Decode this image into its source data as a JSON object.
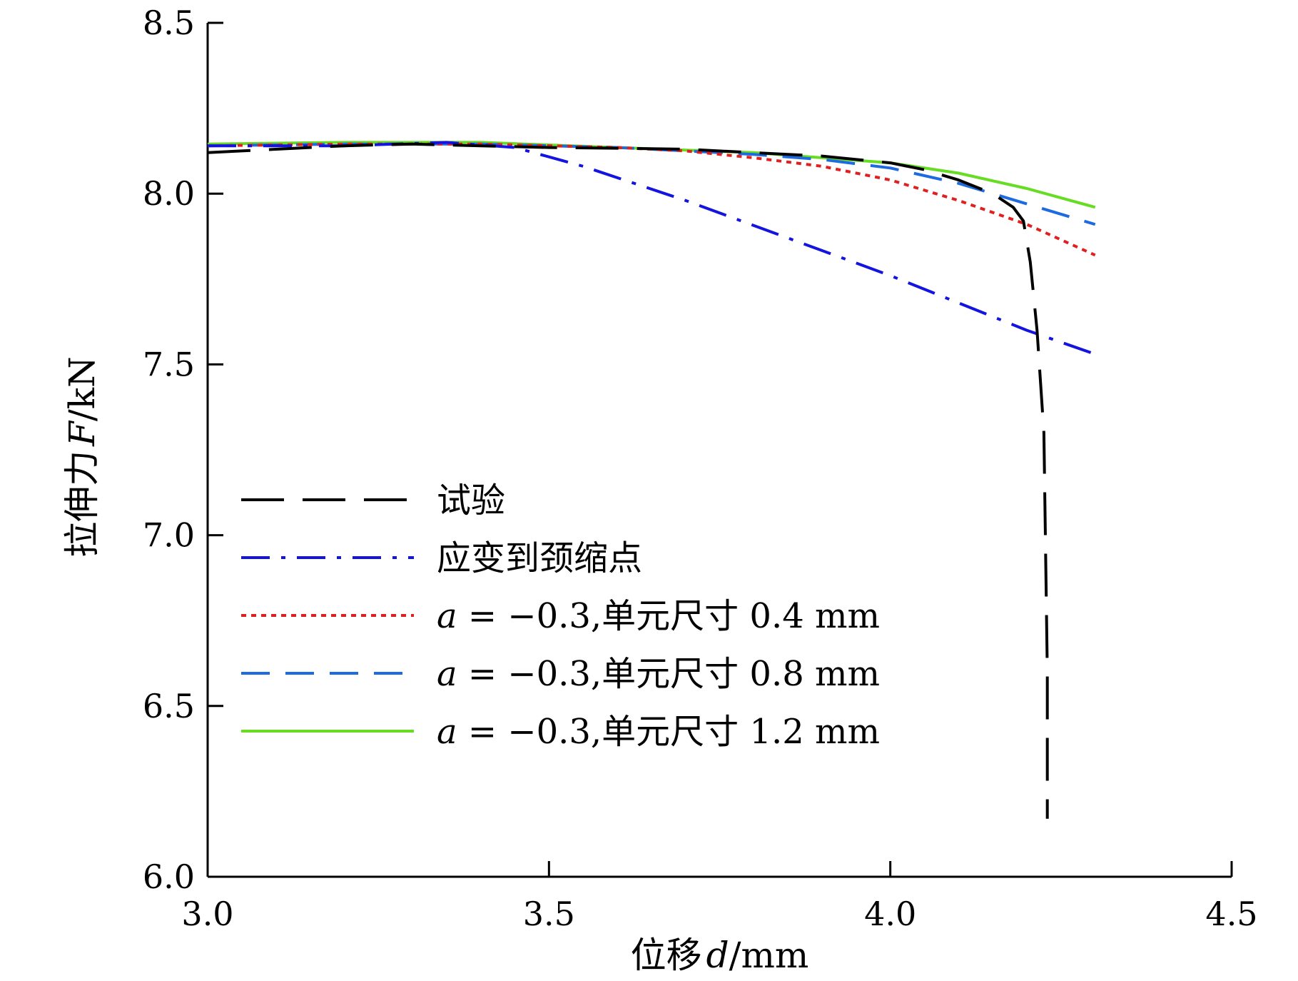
{
  "chart_data": {
    "type": "line",
    "title": "",
    "xlabel": {
      "prefix": "位移",
      "symbol": "d",
      "unit": "/mm"
    },
    "ylabel": {
      "prefix": "拉伸力",
      "symbol": "F",
      "unit": "/kN"
    },
    "xlim": [
      3.0,
      4.5
    ],
    "ylim": [
      6.0,
      8.5
    ],
    "xticks": [
      3.0,
      3.5,
      4.0,
      4.5
    ],
    "yticks": [
      6.0,
      6.5,
      7.0,
      7.5,
      8.0,
      8.5
    ],
    "xtick_labels": [
      "3.0",
      "3.5",
      "4.0",
      "4.5"
    ],
    "ytick_labels": [
      "6.0",
      "6.5",
      "7.0",
      "7.5",
      "8.0",
      "8.5"
    ],
    "grid": false,
    "legend_position": "center-left",
    "series": [
      {
        "name": "试验",
        "color": "#000000",
        "dash": "long-dash",
        "x": [
          3.0,
          3.1,
          3.2,
          3.3,
          3.4,
          3.5,
          3.6,
          3.7,
          3.8,
          3.9,
          4.0,
          4.05,
          4.1,
          4.15,
          4.18,
          4.195,
          4.205,
          4.215,
          4.225,
          4.23,
          4.23
        ],
        "y": [
          8.12,
          8.13,
          8.14,
          8.145,
          8.14,
          8.135,
          8.133,
          8.13,
          8.12,
          8.11,
          8.09,
          8.07,
          8.04,
          8.0,
          7.96,
          7.92,
          7.8,
          7.6,
          7.3,
          6.6,
          6.17
        ]
      },
      {
        "name": "应变到颈缩点",
        "color": "#1414e0",
        "dash": "dash-dot",
        "x": [
          3.0,
          3.2,
          3.35,
          3.45,
          3.55,
          3.7,
          3.85,
          4.0,
          4.1,
          4.2,
          4.3
        ],
        "y": [
          8.14,
          8.14,
          8.15,
          8.135,
          8.08,
          7.98,
          7.87,
          7.76,
          7.68,
          7.6,
          7.53
        ]
      },
      {
        "name": "a = −0.3,单元尺寸 0.4 mm",
        "color": "#e02020",
        "dash": "dotted",
        "x": [
          3.0,
          3.2,
          3.4,
          3.6,
          3.7,
          3.8,
          3.9,
          4.0,
          4.1,
          4.2,
          4.3
        ],
        "y": [
          8.14,
          8.145,
          8.145,
          8.135,
          8.125,
          8.105,
          8.08,
          8.04,
          7.98,
          7.91,
          7.82
        ]
      },
      {
        "name": "a = −0.3,单元尺寸 0.8 mm",
        "color": "#1e6ae0",
        "dash": "dash",
        "x": [
          3.0,
          3.2,
          3.4,
          3.6,
          3.8,
          3.9,
          4.0,
          4.1,
          4.2,
          4.3
        ],
        "y": [
          8.14,
          8.145,
          8.145,
          8.135,
          8.115,
          8.1,
          8.075,
          8.03,
          7.97,
          7.91
        ]
      },
      {
        "name": "a = −0.3,单元尺寸 1.2 mm",
        "color": "#66dd22",
        "dash": "solid",
        "x": [
          3.0,
          3.2,
          3.4,
          3.6,
          3.8,
          4.0,
          4.1,
          4.2,
          4.3
        ],
        "y": [
          8.145,
          8.15,
          8.15,
          8.135,
          8.12,
          8.09,
          8.06,
          8.015,
          7.96
        ]
      }
    ],
    "legend": [
      {
        "var": "",
        "rest": "试验"
      },
      {
        "var": "",
        "rest": "应变到颈缩点"
      },
      {
        "var": "a",
        "rest": " = −0.3,单元尺寸 0.4 mm"
      },
      {
        "var": "a",
        "rest": " = −0.3,单元尺寸 0.8 mm"
      },
      {
        "var": "a",
        "rest": " = −0.3,单元尺寸 1.2 mm"
      }
    ]
  }
}
